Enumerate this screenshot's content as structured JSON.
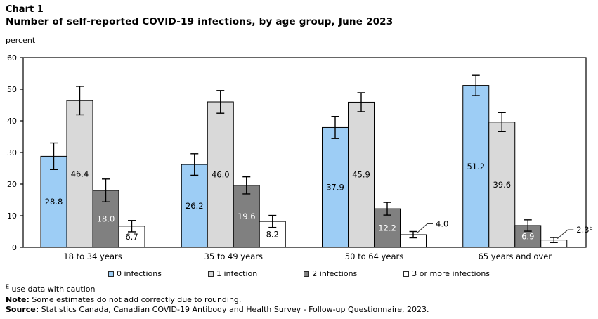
{
  "header": {
    "chart_label": "Chart 1",
    "title": "Number of self-reported COVID-19 infections, by age group, June 2023"
  },
  "chart_data": {
    "type": "bar",
    "title": "Number of self-reported COVID-19 infections, by age group, June 2023",
    "xlabel": "",
    "ylabel": "percent",
    "ylim": [
      0,
      60
    ],
    "ytick_step": 10,
    "grid": false,
    "legend_position": "bottom",
    "categories": [
      "18 to 34 years",
      "35 to 49 years",
      "50 to 64 years",
      "65 years and over"
    ],
    "series": [
      {
        "name": "0 infections",
        "color": "#9DCDF5",
        "label_color": "#000000",
        "values": [
          28.8,
          26.2,
          37.9,
          51.2
        ],
        "errors": [
          4.2,
          3.4,
          3.5,
          3.2
        ],
        "labels": [
          "28.8",
          "26.2",
          "37.9",
          "51.2"
        ],
        "flags": [
          "",
          "",
          "",
          ""
        ]
      },
      {
        "name": "1 infection",
        "color": "#D9D9D9",
        "label_color": "#000000",
        "values": [
          46.4,
          46.0,
          45.9,
          39.6
        ],
        "errors": [
          4.5,
          3.6,
          3.0,
          3.0
        ],
        "labels": [
          "46.4",
          "46.0",
          "45.9",
          "39.6"
        ],
        "flags": [
          "",
          "",
          "",
          ""
        ]
      },
      {
        "name": "2 infections",
        "color": "#808080",
        "label_color": "#FFFFFF",
        "values": [
          18.0,
          19.6,
          12.2,
          6.9
        ],
        "errors": [
          3.6,
          2.7,
          2.0,
          1.8
        ],
        "labels": [
          "18.0",
          "19.6",
          "12.2",
          "6.9"
        ],
        "flags": [
          "",
          "",
          "",
          ""
        ]
      },
      {
        "name": "3 or more infections",
        "color": "#FFFFFF",
        "label_color": "#000000",
        "values": [
          6.7,
          8.2,
          4.0,
          2.3
        ],
        "errors": [
          1.8,
          1.9,
          1.0,
          0.8
        ],
        "labels": [
          "6.7",
          "8.2",
          "4.0",
          "2.3"
        ],
        "flags": [
          "",
          "",
          "",
          "E"
        ]
      }
    ]
  },
  "footnotes": {
    "caution_flag": "E",
    "caution_text": " use data with caution",
    "note_label": "Note:",
    "note_text": " Some estimates do not add correctly due to rounding.",
    "source_label": "Source:",
    "source_text": " Statistics Canada, Canadian COVID-19 Antibody and Health Survey - Follow-up Questionnaire, 2023."
  }
}
